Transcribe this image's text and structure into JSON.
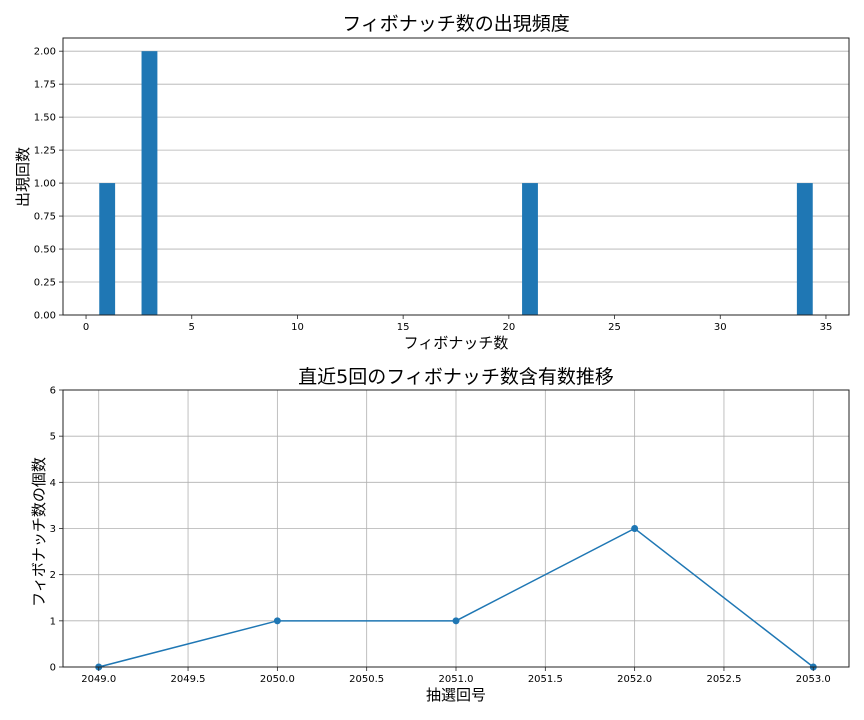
{
  "chart_data": [
    {
      "type": "bar",
      "title": "フィボナッチ数の出現頻度",
      "xlabel": "フィボナッチ数",
      "ylabel": "出現回数",
      "x": [
        1,
        3,
        21,
        34
      ],
      "values": [
        1,
        2,
        1,
        1
      ],
      "bar_width": 0.75,
      "color": "#1f77b4",
      "xlim": [
        -1.09,
        36.09
      ],
      "ylim": [
        0,
        2.1
      ],
      "xticks": [
        0,
        5,
        10,
        15,
        20,
        25,
        30,
        35
      ],
      "xtick_labels": [
        "0",
        "5",
        "10",
        "15",
        "20",
        "25",
        "30",
        "35"
      ],
      "yticks": [
        0,
        0.25,
        0.5,
        0.75,
        1.0,
        1.25,
        1.5,
        1.75,
        2.0
      ],
      "ytick_labels": [
        "0.00",
        "0.25",
        "0.50",
        "0.75",
        "1.00",
        "1.25",
        "1.50",
        "1.75",
        "2.00"
      ],
      "grid": "y"
    },
    {
      "type": "line",
      "title": "直近5回のフィボナッチ数含有数推移",
      "xlabel": "抽選回号",
      "ylabel": "フィボナッチ数の個数",
      "x": [
        2049,
        2050,
        2051,
        2052,
        2053
      ],
      "values": [
        0,
        1,
        1,
        3,
        0
      ],
      "marker": "o",
      "color": "#1f77b4",
      "xlim": [
        2048.8,
        2053.2
      ],
      "ylim": [
        0,
        6
      ],
      "xticks": [
        2049.0,
        2049.5,
        2050.0,
        2050.5,
        2051.0,
        2051.5,
        2052.0,
        2052.5,
        2053.0
      ],
      "xtick_labels": [
        "2049.0",
        "2049.5",
        "2050.0",
        "2050.5",
        "2051.0",
        "2051.5",
        "2052.0",
        "2052.5",
        "2053.0"
      ],
      "yticks": [
        0,
        1,
        2,
        3,
        4,
        5,
        6
      ],
      "ytick_labels": [
        "0",
        "1",
        "2",
        "3",
        "4",
        "5",
        "6"
      ],
      "grid": "both"
    }
  ]
}
